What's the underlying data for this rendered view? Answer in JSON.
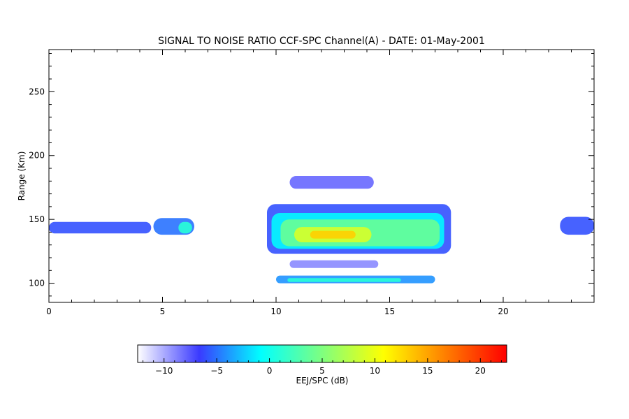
{
  "chart_data": {
    "type": "heatmap",
    "title": "SIGNAL TO NOISE RATIO CCF-SPC Channel(A) - DATE: 01-May-2001",
    "xlabel": "",
    "ylabel": "Range (Km)",
    "xlim": [
      0,
      24
    ],
    "ylim": [
      85,
      283
    ],
    "x_ticks": [
      0,
      5,
      10,
      15,
      20
    ],
    "x_tick_labels": [
      "0",
      "5",
      "10",
      "15",
      "20"
    ],
    "y_ticks": [
      100,
      150,
      200,
      250
    ],
    "y_tick_labels": [
      "100",
      "150",
      "200",
      "250"
    ],
    "grid": false,
    "colorbar": {
      "label": "EEJ/SPC (dB)",
      "range": [
        -12.5,
        22.5
      ],
      "ticks": [
        -10,
        -5,
        0,
        5,
        10,
        15,
        20
      ],
      "tick_labels": [
        "−10",
        "−5",
        "0",
        "5",
        "10",
        "15",
        "20"
      ],
      "colors": [
        "#ffffff",
        "#3a3aff",
        "#00ffff",
        "#7fff7f",
        "#ffff00",
        "#ff7f00",
        "#ff0000"
      ]
    },
    "regions": [
      {
        "x0": 0.0,
        "x1": 4.5,
        "y0": 139,
        "y1": 148,
        "snr": -6
      },
      {
        "x0": 4.6,
        "x1": 6.4,
        "y0": 138,
        "y1": 151,
        "snr": -5
      },
      {
        "x0": 5.7,
        "x1": 6.3,
        "y0": 139,
        "y1": 148,
        "snr": 1
      },
      {
        "x0": 9.6,
        "x1": 17.7,
        "y0": 123,
        "y1": 162,
        "snr": -6
      },
      {
        "x0": 9.8,
        "x1": 17.4,
        "y0": 127,
        "y1": 155,
        "snr": -1
      },
      {
        "x0": 10.2,
        "x1": 17.2,
        "y0": 129,
        "y1": 150,
        "snr": 4
      },
      {
        "x0": 10.8,
        "x1": 14.2,
        "y0": 132,
        "y1": 144,
        "snr": 9
      },
      {
        "x0": 11.5,
        "x1": 13.5,
        "y0": 135,
        "y1": 141,
        "snr": 13
      },
      {
        "x0": 10.6,
        "x1": 14.3,
        "y0": 174,
        "y1": 184,
        "snr": -8
      },
      {
        "x0": 10.6,
        "x1": 14.5,
        "y0": 112,
        "y1": 118,
        "snr": -9
      },
      {
        "x0": 10.0,
        "x1": 17.0,
        "y0": 100,
        "y1": 106,
        "snr": -4
      },
      {
        "x0": 10.5,
        "x1": 15.5,
        "y0": 101,
        "y1": 104,
        "snr": 1
      },
      {
        "x0": 22.5,
        "x1": 24.0,
        "y0": 138,
        "y1": 152,
        "snr": -6
      }
    ]
  }
}
